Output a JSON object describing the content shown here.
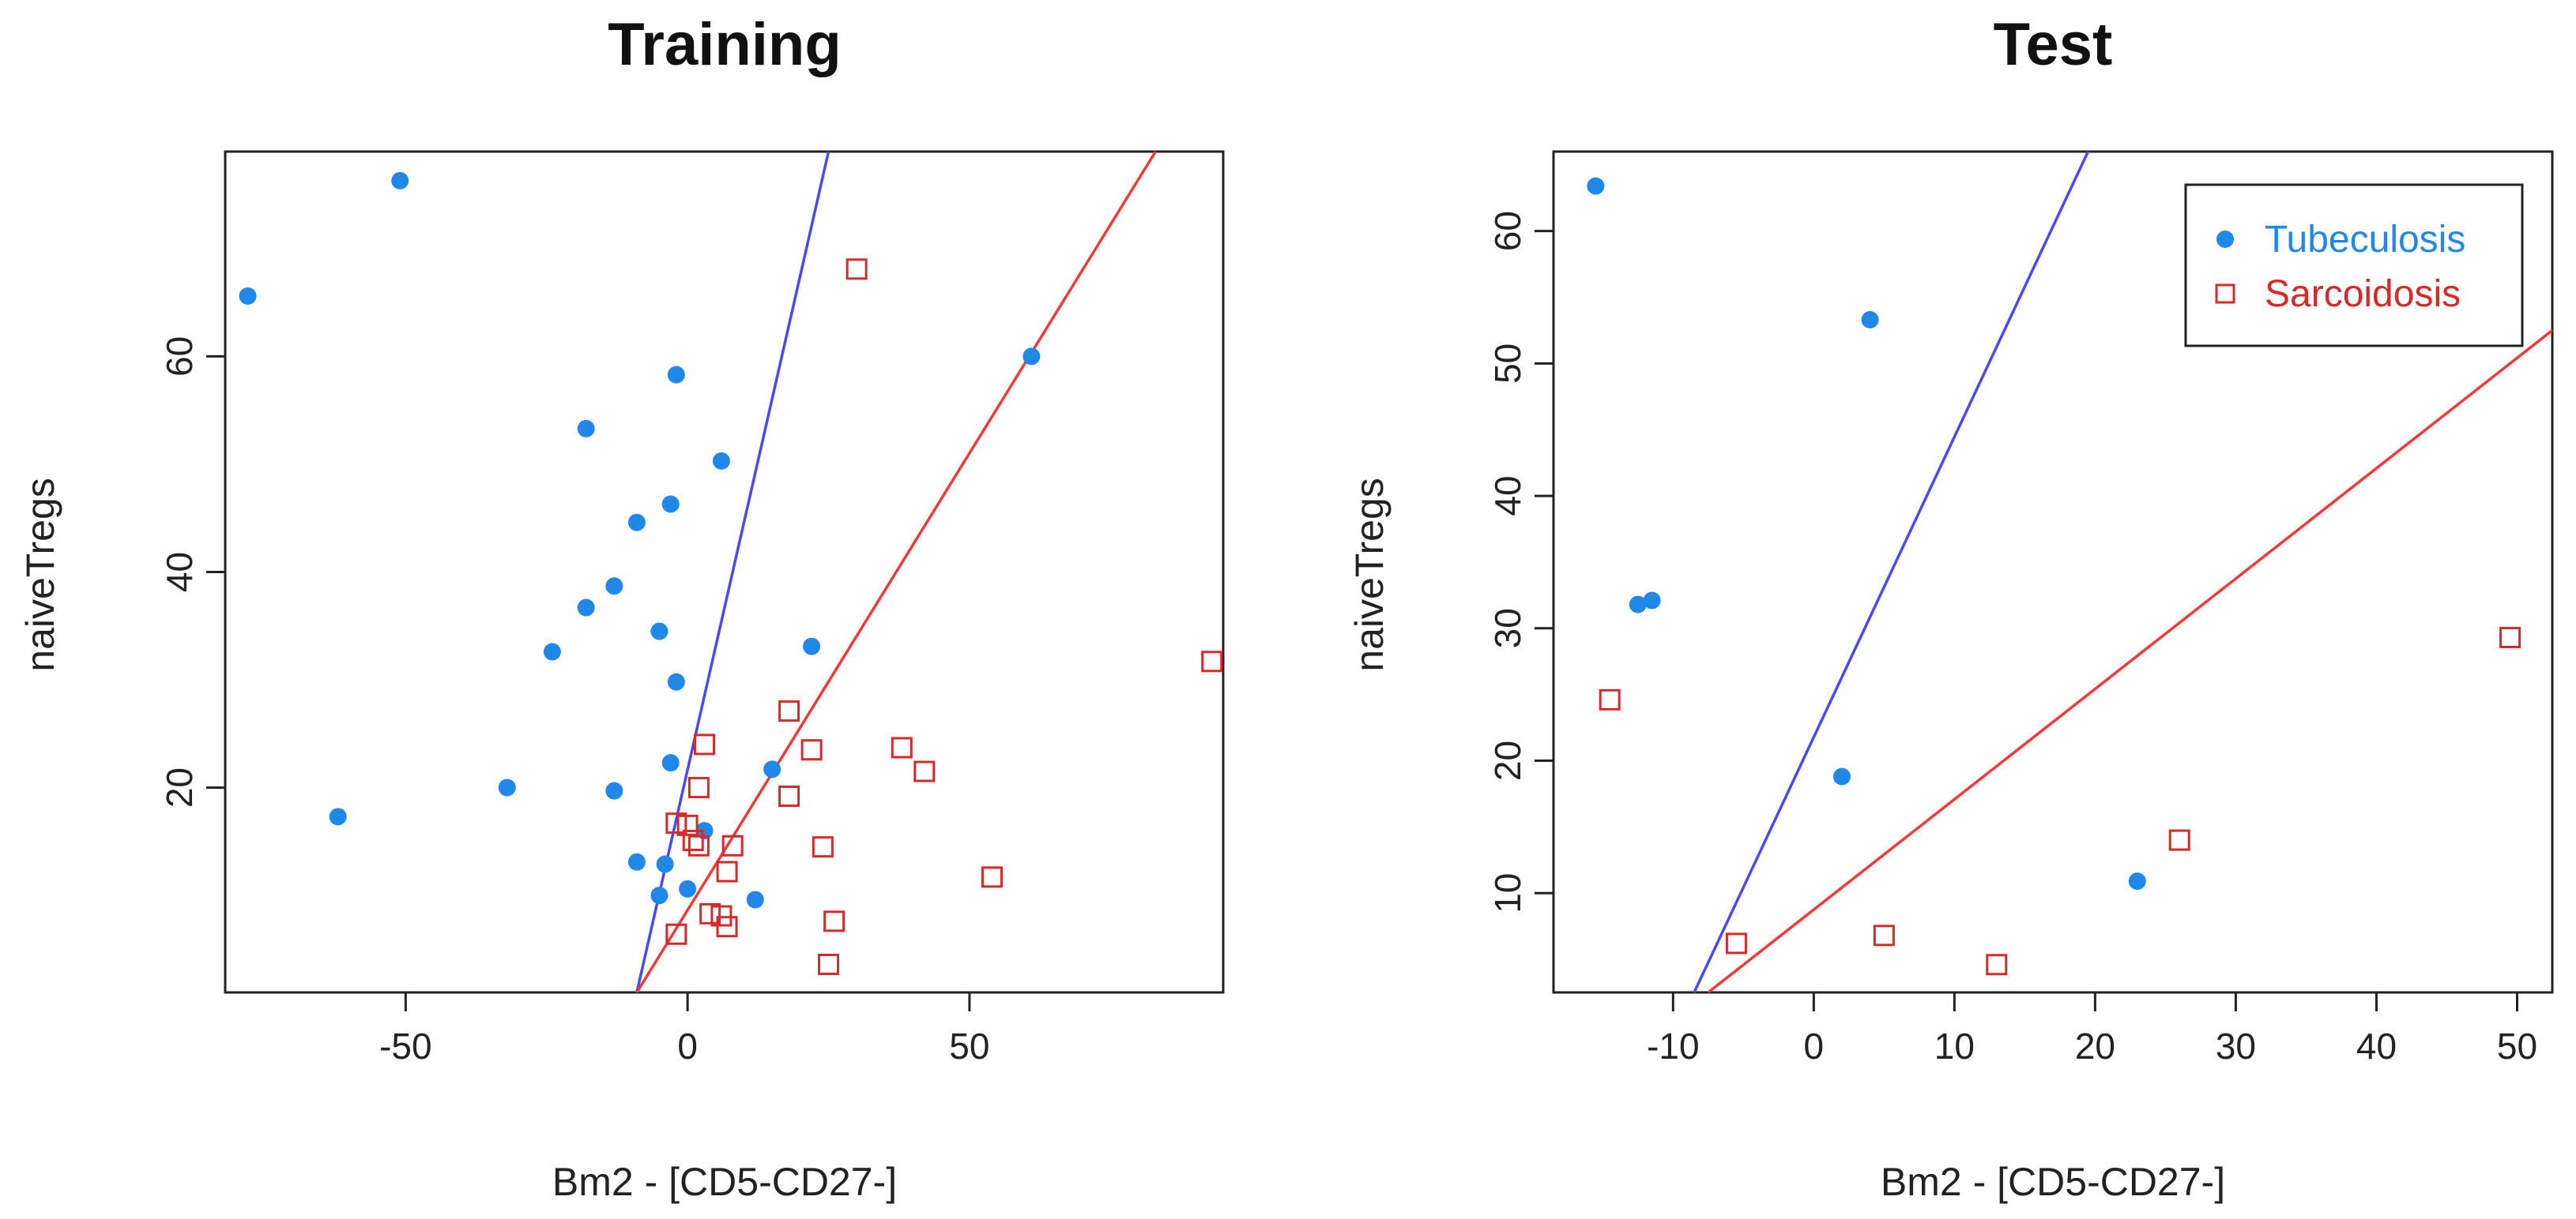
{
  "chart_data": [
    {
      "type": "scatter",
      "title": "Training",
      "xlabel": "Bm2 - [CD5-CD27-]",
      "ylabel": "naiveTregs",
      "xlim": [
        -82,
        95
      ],
      "ylim": [
        1,
        79
      ],
      "xticks": [
        -50,
        0,
        50
      ],
      "yticks": [
        20,
        40,
        60
      ],
      "grid": false,
      "legend": null,
      "series": [
        {
          "name": "Tubeculosis",
          "marker": "filled-circle",
          "color": "#1f88e8",
          "points": [
            [
              -51,
              76.3
            ],
            [
              -78,
              65.6
            ],
            [
              -2,
              58.3
            ],
            [
              -18,
              53.3
            ],
            [
              6,
              50.3
            ],
            [
              -3,
              46.3
            ],
            [
              -9,
              44.6
            ],
            [
              -13,
              38.7
            ],
            [
              -18,
              36.7
            ],
            [
              -5,
              34.5
            ],
            [
              -24,
              32.6
            ],
            [
              22,
              33.1
            ],
            [
              -2,
              29.8
            ],
            [
              -3,
              22.3
            ],
            [
              15,
              21.7
            ],
            [
              -32,
              20.0
            ],
            [
              -13,
              19.7
            ],
            [
              -62,
              17.3
            ],
            [
              3,
              16.0
            ],
            [
              -9,
              13.1
            ],
            [
              -4,
              12.9
            ],
            [
              0,
              10.6
            ],
            [
              -5,
              10.0
            ],
            [
              12,
              9.6
            ],
            [
              61,
              60.0
            ]
          ]
        },
        {
          "name": "Sarcoidosis",
          "marker": "open-square",
          "color": "#d42a2a",
          "points": [
            [
              30,
              68.1
            ],
            [
              93,
              31.7
            ],
            [
              18,
              27.1
            ],
            [
              38,
              23.7
            ],
            [
              3,
              24.0
            ],
            [
              22,
              23.5
            ],
            [
              42,
              21.5
            ],
            [
              2,
              20.0
            ],
            [
              18,
              19.2
            ],
            [
              -2,
              16.7
            ],
            [
              0,
              16.5
            ],
            [
              1,
              15.1
            ],
            [
              2,
              14.6
            ],
            [
              8,
              14.6
            ],
            [
              24,
              14.5
            ],
            [
              7,
              12.2
            ],
            [
              54,
              11.7
            ],
            [
              4,
              8.3
            ],
            [
              6,
              8.1
            ],
            [
              7,
              7.1
            ],
            [
              26,
              7.6
            ],
            [
              -2,
              6.4
            ],
            [
              25,
              3.6
            ]
          ]
        }
      ],
      "lines": [
        {
          "color": "#4a4af0",
          "from": [
            -9,
            1
          ],
          "to": [
            25,
            79
          ]
        },
        {
          "color": "#f03a3a",
          "from": [
            -9,
            1
          ],
          "to": [
            83,
            79
          ]
        }
      ]
    },
    {
      "type": "scatter",
      "title": "Test",
      "xlabel": "Bm2 - [CD5-CD27-]",
      "ylabel": "naiveTregs",
      "xlim": [
        -18.5,
        52.5
      ],
      "ylim": [
        2.5,
        66
      ],
      "xticks": [
        -10,
        0,
        10,
        20,
        30,
        40,
        50
      ],
      "yticks": [
        10,
        20,
        30,
        40,
        50,
        60
      ],
      "grid": false,
      "legend": {
        "position": "top-right",
        "entries": [
          {
            "label": "Tubeculosis",
            "marker": "filled-circle",
            "color": "#1f88e8"
          },
          {
            "label": "Sarcoidosis",
            "marker": "open-square",
            "color": "#d42a2a"
          }
        ]
      },
      "series": [
        {
          "name": "Tubeculosis",
          "marker": "filled-circle",
          "color": "#1f88e8",
          "points": [
            [
              -15.5,
              63.4
            ],
            [
              4,
              53.3
            ],
            [
              -12.5,
              31.8
            ],
            [
              -11.5,
              32.1
            ],
            [
              2,
              18.8
            ],
            [
              23,
              10.9
            ]
          ]
        },
        {
          "name": "Sarcoidosis",
          "marker": "open-square",
          "color": "#d42a2a",
          "points": [
            [
              -14.5,
              24.6
            ],
            [
              -5.5,
              6.2
            ],
            [
              5,
              6.8
            ],
            [
              13,
              4.6
            ],
            [
              26,
              14.0
            ],
            [
              49.5,
              29.3
            ]
          ]
        }
      ],
      "lines": [
        {
          "color": "#4a4af0",
          "from": [
            -8.5,
            2.5
          ],
          "to": [
            19.5,
            66
          ]
        },
        {
          "color": "#f03a3a",
          "from": [
            -7.5,
            2.5
          ],
          "to": [
            52.5,
            52.5
          ]
        }
      ]
    }
  ]
}
